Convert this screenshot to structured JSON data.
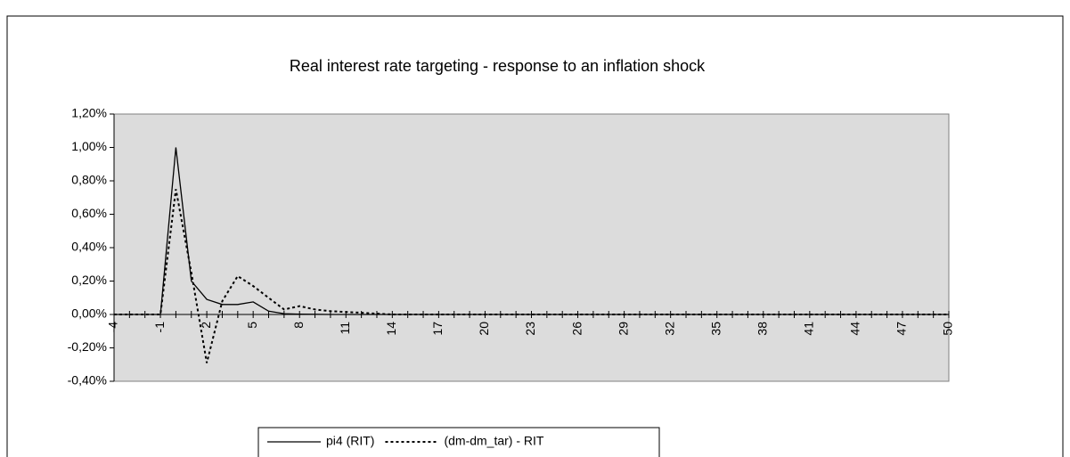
{
  "chart_data": {
    "type": "line",
    "title": "Real interest rate targeting - response to an inflation shock",
    "categories": [
      -4,
      null,
      null,
      -1,
      null,
      null,
      2,
      null,
      null,
      5,
      null,
      null,
      8,
      null,
      null,
      11,
      null,
      null,
      14,
      null,
      null,
      17,
      null,
      null,
      20,
      null,
      null,
      23,
      null,
      null,
      26,
      null,
      null,
      29,
      null,
      null,
      32,
      null,
      null,
      35,
      null,
      null,
      38,
      null,
      null,
      41,
      null,
      null,
      44,
      null,
      null,
      47,
      null,
      null,
      50
    ],
    "series": [
      {
        "name": "pi4 (RIT)",
        "color": "#000000",
        "style": "solid",
        "values": [
          0,
          0,
          0,
          0,
          1.0,
          0.2,
          0.09,
          0.06,
          0.06,
          0.075,
          0.02,
          0.005,
          0.002,
          0.001,
          0,
          0,
          0,
          0,
          0,
          0,
          0,
          0,
          0,
          0,
          0,
          0,
          0,
          0,
          0,
          0,
          0,
          0,
          0,
          0,
          0,
          0,
          0,
          0,
          0,
          0,
          0,
          0,
          0,
          0,
          0,
          0,
          0,
          0,
          0,
          0,
          0,
          0,
          0,
          0,
          0
        ]
      },
      {
        "name": "(dm-dm_tar) - RIT",
        "color": "#000000",
        "style": "dashed",
        "values": [
          0,
          0,
          0,
          0,
          0.75,
          0.25,
          -0.29,
          0.08,
          0.23,
          0.17,
          0.1,
          0.03,
          0.05,
          0.03,
          0.02,
          0.015,
          0.01,
          0.005,
          0,
          0,
          0,
          0,
          0,
          0,
          0,
          0,
          0,
          0,
          0,
          0,
          0,
          0,
          0,
          0,
          0,
          0,
          0,
          0,
          0,
          0,
          0,
          0,
          0,
          0,
          0,
          0,
          0,
          0,
          0,
          0,
          0,
          0,
          0,
          0,
          0
        ]
      }
    ],
    "ylim": [
      -0.4,
      1.2
    ],
    "yticks": [
      {
        "value": -0.4,
        "label": "-0,40%"
      },
      {
        "value": -0.2,
        "label": "-0,20%"
      },
      {
        "value": 0,
        "label": "0,00%"
      },
      {
        "value": 0.2,
        "label": "0,20%"
      },
      {
        "value": 0.4,
        "label": "0,40%"
      },
      {
        "value": 0.6,
        "label": "0,60%"
      },
      {
        "value": 0.8,
        "label": "0,80%"
      },
      {
        "value": 1.0,
        "label": "1,00%"
      },
      {
        "value": 1.2,
        "label": "1,20%"
      }
    ],
    "plot_background": "#dcdcdc",
    "legend": "bottom"
  }
}
